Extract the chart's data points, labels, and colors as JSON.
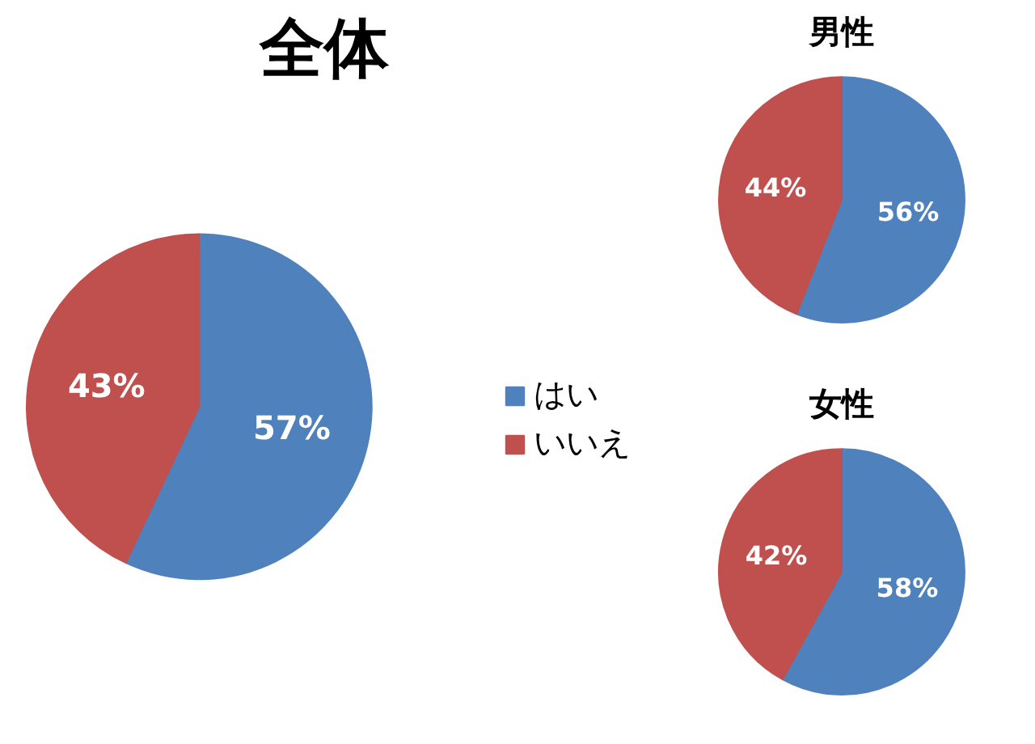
{
  "chart_data": [
    {
      "type": "pie",
      "title": "全体",
      "categories": [
        "はい",
        "いいえ"
      ],
      "values": [
        57,
        43
      ],
      "colors": [
        "#4f81bd",
        "#c0504d"
      ],
      "value_labels": [
        "57%",
        "43%"
      ],
      "legend": "right"
    },
    {
      "type": "pie",
      "title": "男性",
      "categories": [
        null,
        null
      ],
      "values": [
        56,
        44
      ],
      "colors": [
        "#4f81bd",
        "#c0504d"
      ],
      "value_labels": [
        "56%",
        "44%"
      ]
    },
    {
      "type": "pie",
      "title": "女性",
      "categories": [
        null,
        null
      ],
      "values": [
        58,
        42
      ],
      "colors": [
        "#4f81bd",
        "#c0504d"
      ],
      "value_labels": [
        "58%",
        "42%"
      ]
    }
  ]
}
